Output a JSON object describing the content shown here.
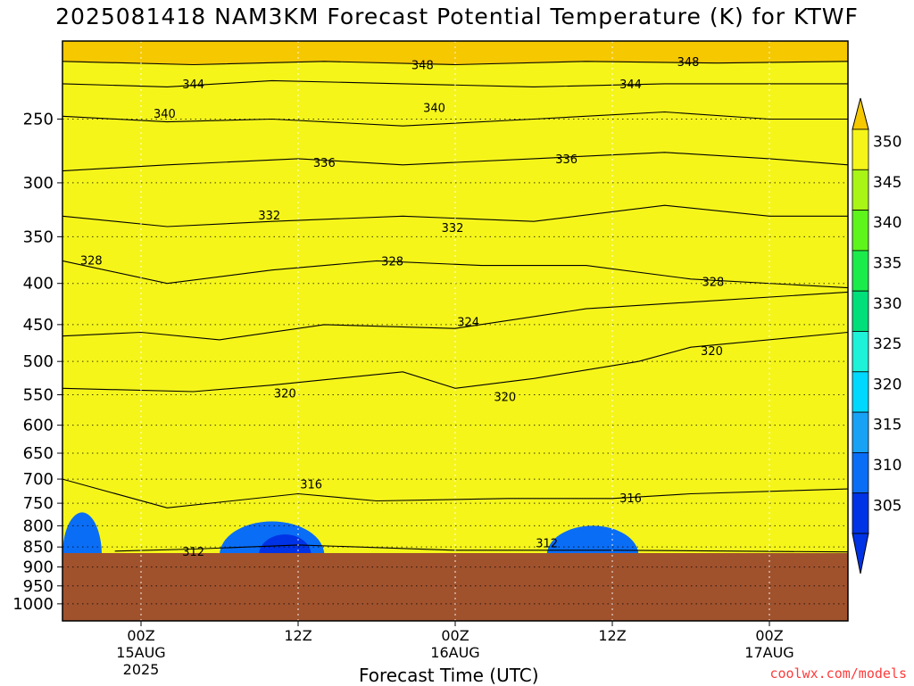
{
  "chart_data": {
    "type": "heatmap",
    "title": "2025081418 NAM3KM Forecast Potential Temperature (K) for KTWF",
    "xlabel": "Forecast Time (UTC)",
    "ylabel": "",
    "x_ticks": [
      {
        "label": "00Z",
        "sub1": "15AUG",
        "sub2": "2025",
        "hour": 6
      },
      {
        "label": "12Z",
        "sub1": "",
        "sub2": "",
        "hour": 18
      },
      {
        "label": "00Z",
        "sub1": "16AUG",
        "sub2": "",
        "hour": 30
      },
      {
        "label": "12Z",
        "sub1": "",
        "sub2": "",
        "hour": 42
      },
      {
        "label": "00Z",
        "sub1": "17AUG",
        "sub2": "",
        "hour": 54
      }
    ],
    "x_range_hours": [
      0,
      60
    ],
    "y_ticks": [
      250,
      300,
      350,
      400,
      450,
      500,
      550,
      600,
      650,
      700,
      750,
      800,
      850,
      900,
      950,
      1000
    ],
    "y_range_hpa": [
      200,
      1050
    ],
    "y_scale": "log-pressure",
    "surface_pressure_hpa": 870,
    "colorbar": {
      "ticks": [
        305,
        310,
        315,
        320,
        325,
        330,
        335,
        340,
        345,
        350
      ],
      "colors": [
        "#0033e6",
        "#0a6df5",
        "#18a2f5",
        "#00d8ff",
        "#1ef2d8",
        "#00df7a",
        "#1bec4c",
        "#5ef51c",
        "#a9f516",
        "#f5f51a",
        "#f5c800"
      ]
    },
    "series": [
      {
        "name": "312",
        "values": [
          [
            4,
            860
          ],
          [
            10,
            855
          ],
          [
            18,
            845
          ],
          [
            30,
            858
          ],
          [
            42,
            858
          ],
          [
            60,
            862
          ]
        ]
      },
      {
        "name": "316",
        "values": [
          [
            0,
            700
          ],
          [
            8,
            760
          ],
          [
            18,
            730
          ],
          [
            24,
            745
          ],
          [
            34,
            740
          ],
          [
            42,
            740
          ],
          [
            48,
            730
          ],
          [
            60,
            720
          ]
        ]
      },
      {
        "name": "320",
        "values": [
          [
            0,
            540
          ],
          [
            10,
            545
          ],
          [
            16,
            535
          ],
          [
            26,
            515
          ],
          [
            30,
            540
          ],
          [
            36,
            525
          ],
          [
            44,
            500
          ],
          [
            48,
            480
          ],
          [
            60,
            460
          ]
        ]
      },
      {
        "name": "324",
        "values": [
          [
            0,
            465
          ],
          [
            6,
            460
          ],
          [
            12,
            470
          ],
          [
            20,
            450
          ],
          [
            30,
            455
          ],
          [
            40,
            430
          ],
          [
            50,
            420
          ],
          [
            60,
            410
          ]
        ]
      },
      {
        "name": "328",
        "values": [
          [
            0,
            375
          ],
          [
            8,
            400
          ],
          [
            16,
            385
          ],
          [
            24,
            375
          ],
          [
            32,
            380
          ],
          [
            40,
            380
          ],
          [
            48,
            395
          ],
          [
            60,
            405
          ]
        ]
      },
      {
        "name": "332",
        "values": [
          [
            0,
            330
          ],
          [
            8,
            340
          ],
          [
            16,
            335
          ],
          [
            26,
            330
          ],
          [
            36,
            335
          ],
          [
            46,
            320
          ],
          [
            54,
            330
          ],
          [
            60,
            330
          ]
        ]
      },
      {
        "name": "336",
        "values": [
          [
            0,
            290
          ],
          [
            8,
            285
          ],
          [
            18,
            280
          ],
          [
            26,
            285
          ],
          [
            36,
            280
          ],
          [
            46,
            275
          ],
          [
            54,
            280
          ],
          [
            60,
            285
          ]
        ]
      },
      {
        "name": "340",
        "values": [
          [
            0,
            248
          ],
          [
            8,
            252
          ],
          [
            16,
            250
          ],
          [
            26,
            255
          ],
          [
            36,
            250
          ],
          [
            46,
            245
          ],
          [
            54,
            250
          ],
          [
            60,
            250
          ]
        ]
      },
      {
        "name": "344",
        "values": [
          [
            0,
            226
          ],
          [
            8,
            228
          ],
          [
            16,
            224
          ],
          [
            26,
            226
          ],
          [
            36,
            228
          ],
          [
            46,
            226
          ],
          [
            60,
            226
          ]
        ]
      },
      {
        "name": "348",
        "values": [
          [
            0,
            212
          ],
          [
            10,
            214
          ],
          [
            20,
            212
          ],
          [
            30,
            214
          ],
          [
            40,
            212
          ],
          [
            50,
            213
          ],
          [
            60,
            212
          ]
        ]
      }
    ],
    "contour_labels": [
      {
        "text": "348",
        "hour": 27.5,
        "p": 214
      },
      {
        "text": "348",
        "hour": 47.8,
        "p": 212
      },
      {
        "text": "344",
        "hour": 10.0,
        "p": 226
      },
      {
        "text": "344",
        "hour": 43.4,
        "p": 226
      },
      {
        "text": "340",
        "hour": 7.8,
        "p": 246
      },
      {
        "text": "340",
        "hour": 28.4,
        "p": 242
      },
      {
        "text": "336",
        "hour": 20.0,
        "p": 283
      },
      {
        "text": "336",
        "hour": 38.5,
        "p": 280
      },
      {
        "text": "332",
        "hour": 15.8,
        "p": 329
      },
      {
        "text": "332",
        "hour": 29.8,
        "p": 341
      },
      {
        "text": "328",
        "hour": 2.2,
        "p": 374
      },
      {
        "text": "328",
        "hour": 25.2,
        "p": 375
      },
      {
        "text": "328",
        "hour": 49.7,
        "p": 398
      },
      {
        "text": "324",
        "hour": 31.0,
        "p": 446
      },
      {
        "text": "320",
        "hour": 17.0,
        "p": 547
      },
      {
        "text": "320",
        "hour": 33.8,
        "p": 553
      },
      {
        "text": "320",
        "hour": 49.6,
        "p": 485
      },
      {
        "text": "316",
        "hour": 19.0,
        "p": 710
      },
      {
        "text": "316",
        "hour": 43.4,
        "p": 738
      },
      {
        "text": "312",
        "hour": 10.0,
        "p": 860
      },
      {
        "text": "312",
        "hour": 37.0,
        "p": 840
      }
    ],
    "grid": true
  },
  "credit": "coolwx.com/models"
}
